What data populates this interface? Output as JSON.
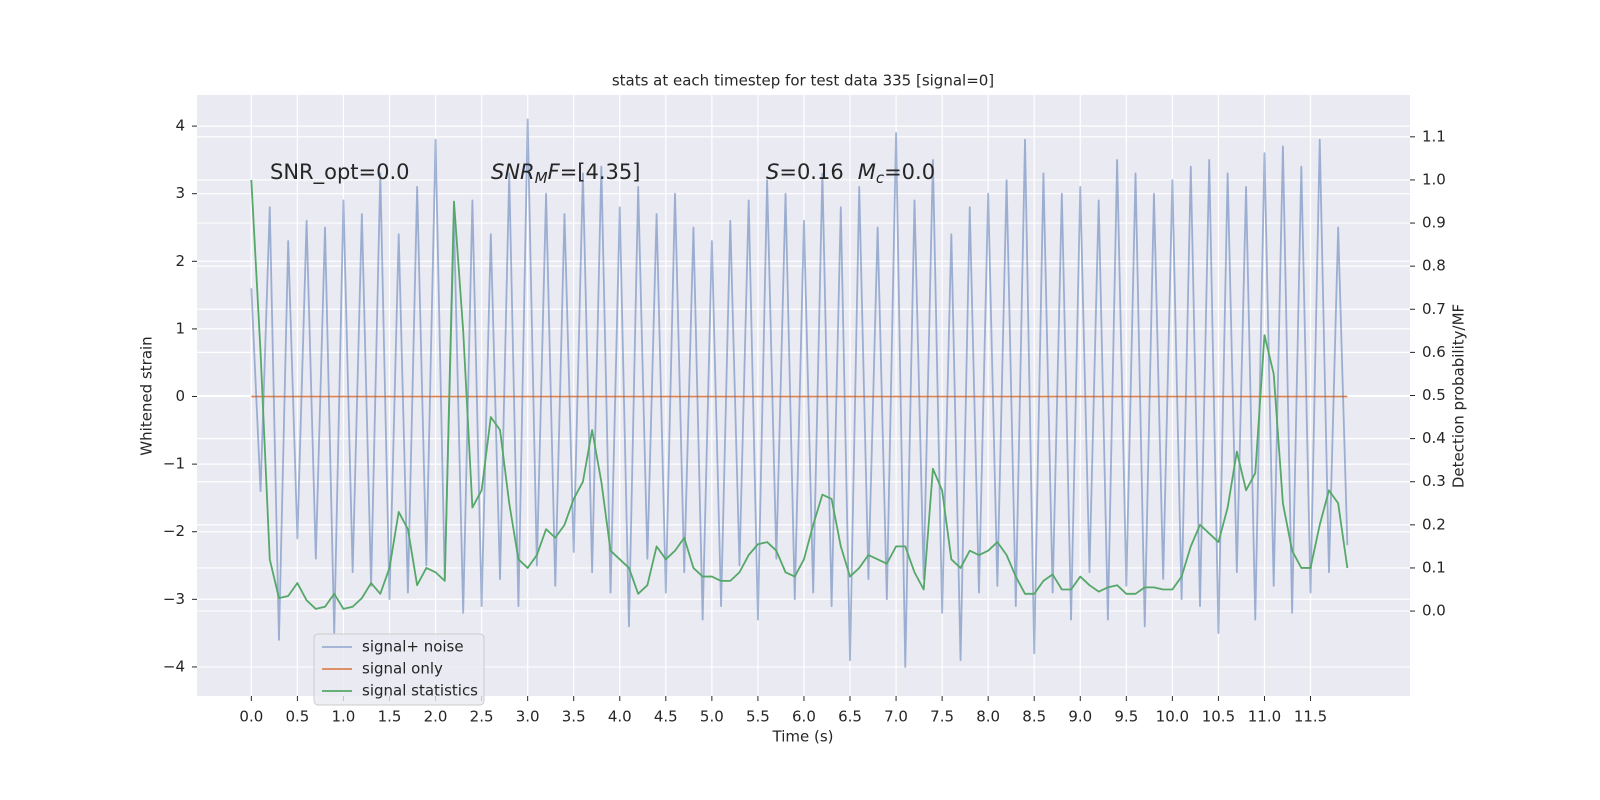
{
  "chart_data": {
    "type": "line",
    "title": "stats at each timestep for test data 335 [signal=0]",
    "xlabel": "Time (s)",
    "ylabel": "Whitened strain",
    "y2label": "Detection probability/MF",
    "annotations": [
      [
        "SNR_opt=0.0"
      ],
      [
        "SNR",
        "M",
        "F",
        "=[4.35]"
      ],
      [
        "S",
        "=0.16",
        "M",
        "c",
        "=0.0"
      ]
    ],
    "grid": true,
    "xlim": [
      -0.59,
      12.58
    ],
    "ylim": [
      -4.43,
      4.46
    ],
    "y2lim": [
      -0.197,
      1.197
    ],
    "xticks": [
      {
        "value": 0,
        "label": "0.0"
      },
      {
        "value": 0.5,
        "label": "0.5"
      },
      {
        "value": 1,
        "label": "1.0"
      },
      {
        "value": 1.5,
        "label": "1.5"
      },
      {
        "value": 2,
        "label": "2.0"
      },
      {
        "value": 2.5,
        "label": "2.5"
      },
      {
        "value": 3,
        "label": "3.0"
      },
      {
        "value": 3.5,
        "label": "3.5"
      },
      {
        "value": 4,
        "label": "4.0"
      },
      {
        "value": 4.5,
        "label": "4.5"
      },
      {
        "value": 5,
        "label": "5.0"
      },
      {
        "value": 5.5,
        "label": "5.5"
      },
      {
        "value": 6,
        "label": "6.0"
      },
      {
        "value": 6.5,
        "label": "6.5"
      },
      {
        "value": 7,
        "label": "7.0"
      },
      {
        "value": 7.5,
        "label": "7.5"
      },
      {
        "value": 8,
        "label": "8.0"
      },
      {
        "value": 8.5,
        "label": "8.5"
      },
      {
        "value": 9,
        "label": "9.0"
      },
      {
        "value": 9.5,
        "label": "9.5"
      },
      {
        "value": 10,
        "label": "10.0"
      },
      {
        "value": 10.5,
        "label": "10.5"
      },
      {
        "value": 11,
        "label": "11.0"
      },
      {
        "value": 11.5,
        "label": "11.5"
      }
    ],
    "yticks": [
      {
        "value": -4,
        "label": "−4"
      },
      {
        "value": -3,
        "label": "−3"
      },
      {
        "value": -2,
        "label": "−2"
      },
      {
        "value": -1,
        "label": "−1"
      },
      0,
      1,
      2,
      3,
      4
    ],
    "y2ticks": [
      {
        "value": 0,
        "label": "0.0"
      },
      0.1,
      0.2,
      0.3,
      0.4,
      0.5,
      0.6,
      0.7,
      0.8,
      0.9,
      {
        "value": 1,
        "label": "1.0"
      },
      1.1
    ],
    "x": [
      0,
      0.1,
      0.2,
      0.3,
      0.4,
      0.5,
      0.6,
      0.7,
      0.8,
      0.9,
      1,
      1.1,
      1.2,
      1.3,
      1.4,
      1.5,
      1.6,
      1.7,
      1.8,
      1.9,
      2,
      2.1,
      2.2,
      2.3,
      2.4,
      2.5,
      2.6,
      2.7,
      2.8,
      2.9,
      3,
      3.1,
      3.2,
      3.3,
      3.4,
      3.5,
      3.6,
      3.7,
      3.8,
      3.9,
      4,
      4.1,
      4.2,
      4.3,
      4.4,
      4.5,
      4.6,
      4.7,
      4.8,
      4.9,
      5,
      5.1,
      5.2,
      5.3,
      5.4,
      5.5,
      5.6,
      5.7,
      5.8,
      5.9,
      6,
      6.1,
      6.2,
      6.3,
      6.4,
      6.5,
      6.6,
      6.7,
      6.8,
      6.9,
      7,
      7.1,
      7.2,
      7.3,
      7.4,
      7.5,
      7.6,
      7.7,
      7.8,
      7.9,
      8,
      8.1,
      8.2,
      8.3,
      8.4,
      8.5,
      8.6,
      8.7,
      8.8,
      8.9,
      9,
      9.1,
      9.2,
      9.3,
      9.4,
      9.5,
      9.6,
      9.7,
      9.8,
      9.9,
      10,
      10.1,
      10.2,
      10.3,
      10.4,
      10.5,
      10.6,
      10.7,
      10.8,
      10.9,
      11,
      11.1,
      11.2,
      11.3,
      11.4,
      11.5,
      11.6,
      11.7,
      11.8,
      11.9
    ],
    "series": [
      {
        "name": "signal+ noise",
        "color": "#4c72b0",
        "alpha": 0.5,
        "values": [
          1.6,
          -1.4,
          2.8,
          -3.6,
          2.3,
          -2.1,
          2.6,
          -2.4,
          2.5,
          -3.5,
          2.9,
          -2.6,
          2.7,
          -2.8,
          3.3,
          -3.0,
          2.4,
          -2.9,
          3.1,
          -2.5,
          3.8,
          -2.7,
          2.6,
          -3.2,
          2.9,
          -3.1,
          2.4,
          -2.7,
          3.3,
          -3.1,
          4.1,
          -2.5,
          3.0,
          -2.8,
          2.7,
          -2.3,
          3.3,
          -2.6,
          3.4,
          -2.9,
          2.8,
          -3.4,
          3.1,
          -2.4,
          2.7,
          -2.9,
          3.0,
          -2.6,
          2.5,
          -3.3,
          2.3,
          -3.1,
          2.6,
          -2.5,
          2.9,
          -3.3,
          3.2,
          -2.4,
          3.0,
          -3.0,
          2.6,
          -2.9,
          3.3,
          -3.1,
          2.8,
          -3.9,
          3.1,
          -2.7,
          2.5,
          -3.0,
          3.9,
          -4.0,
          2.9,
          -2.7,
          3.5,
          -3.2,
          2.4,
          -3.9,
          2.8,
          -2.9,
          3.0,
          -2.8,
          3.2,
          -3.1,
          3.8,
          -3.8,
          3.3,
          -2.9,
          3.0,
          -3.3,
          3.1,
          -2.6,
          2.9,
          -3.3,
          3.5,
          -2.8,
          3.3,
          -3.4,
          3.0,
          -2.7,
          3.2,
          -3.0,
          3.4,
          -3.1,
          3.5,
          -3.5,
          3.3,
          -2.6,
          3.1,
          -3.3,
          3.6,
          -2.8,
          3.7,
          -3.2,
          3.4,
          -2.9,
          3.8,
          -2.6,
          2.5,
          -2.2
        ]
      },
      {
        "name": "signal only",
        "color": "#dd8452",
        "values": [
          0,
          0,
          0,
          0,
          0,
          0,
          0,
          0,
          0,
          0,
          0,
          0,
          0,
          0,
          0,
          0,
          0,
          0,
          0,
          0,
          0,
          0,
          0,
          0,
          0,
          0,
          0,
          0,
          0,
          0,
          0,
          0,
          0,
          0,
          0,
          0,
          0,
          0,
          0,
          0,
          0,
          0,
          0,
          0,
          0,
          0,
          0,
          0,
          0,
          0,
          0,
          0,
          0,
          0,
          0,
          0,
          0,
          0,
          0,
          0,
          0,
          0,
          0,
          0,
          0,
          0,
          0,
          0,
          0,
          0,
          0,
          0,
          0,
          0,
          0,
          0,
          0,
          0,
          0,
          0,
          0,
          0,
          0,
          0,
          0,
          0,
          0,
          0,
          0,
          0,
          0,
          0,
          0,
          0,
          0,
          0,
          0,
          0,
          0,
          0,
          0,
          0,
          0,
          0,
          0,
          0,
          0,
          0,
          0,
          0,
          0,
          0,
          0,
          0,
          0,
          0,
          0,
          0,
          0,
          0
        ]
      },
      {
        "name": "signal statistics",
        "color": "#55a868",
        "axis": "y2",
        "values": [
          1.0,
          0.6,
          0.12,
          0.03,
          0.035,
          0.065,
          0.025,
          0.005,
          0.01,
          0.04,
          0.005,
          0.01,
          0.03,
          0.065,
          0.04,
          0.1,
          0.23,
          0.19,
          0.06,
          0.1,
          0.09,
          0.07,
          0.95,
          0.65,
          0.24,
          0.28,
          0.45,
          0.42,
          0.25,
          0.12,
          0.1,
          0.13,
          0.19,
          0.17,
          0.2,
          0.26,
          0.3,
          0.42,
          0.3,
          0.14,
          0.12,
          0.1,
          0.04,
          0.06,
          0.15,
          0.12,
          0.14,
          0.17,
          0.1,
          0.08,
          0.08,
          0.07,
          0.07,
          0.09,
          0.13,
          0.155,
          0.16,
          0.14,
          0.09,
          0.08,
          0.12,
          0.2,
          0.27,
          0.26,
          0.15,
          0.08,
          0.1,
          0.13,
          0.12,
          0.11,
          0.15,
          0.15,
          0.09,
          0.05,
          0.33,
          0.28,
          0.12,
          0.1,
          0.14,
          0.13,
          0.14,
          0.16,
          0.13,
          0.08,
          0.04,
          0.04,
          0.07,
          0.085,
          0.05,
          0.05,
          0.08,
          0.06,
          0.045,
          0.055,
          0.06,
          0.04,
          0.04,
          0.055,
          0.055,
          0.05,
          0.05,
          0.08,
          0.15,
          0.2,
          0.18,
          0.16,
          0.24,
          0.37,
          0.28,
          0.32,
          0.64,
          0.55,
          0.25,
          0.14,
          0.1,
          0.1,
          0.2,
          0.28,
          0.25,
          0.1
        ]
      }
    ]
  }
}
